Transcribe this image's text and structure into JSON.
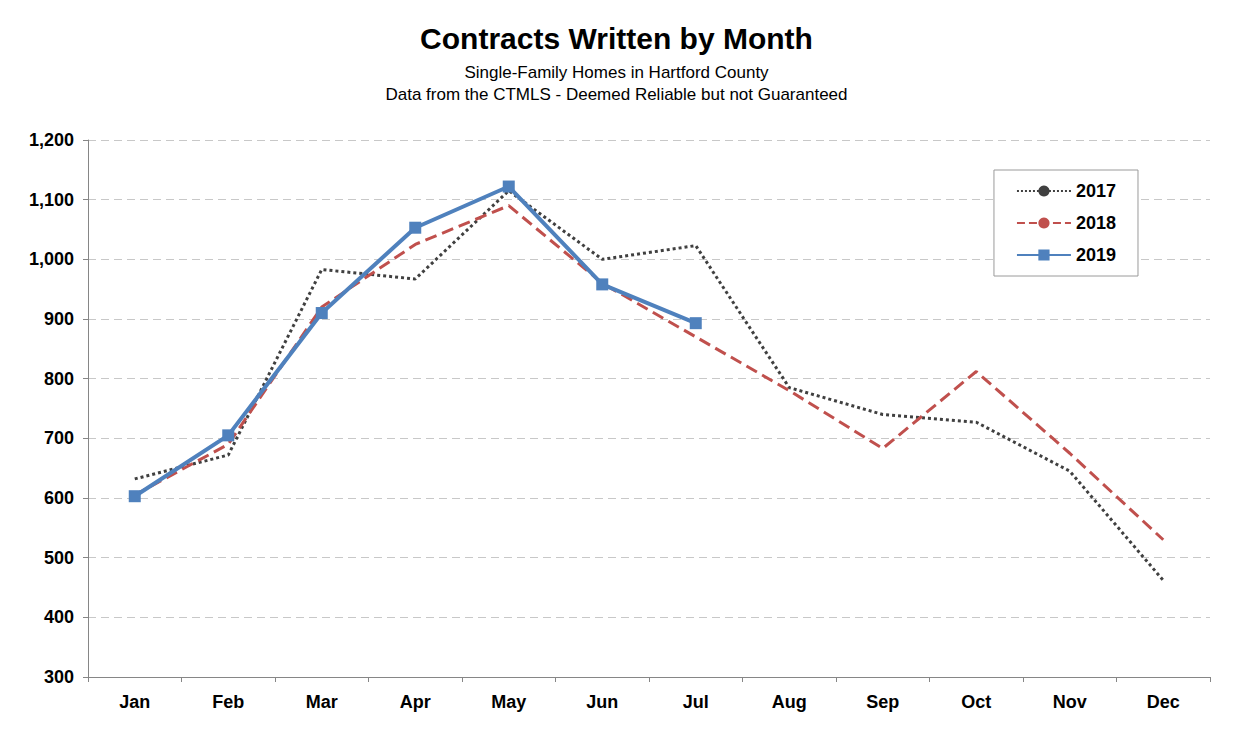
{
  "chart_data": {
    "type": "line",
    "title": "Contracts Written by Month",
    "subtitle": [
      "Single-Family Homes in Hartford County",
      "Data from the CTMLS - Deemed Reliable but not Guaranteed"
    ],
    "categories": [
      "Jan",
      "Feb",
      "Mar",
      "Apr",
      "May",
      "Jun",
      "Jul",
      "Aug",
      "Sep",
      "Oct",
      "Nov",
      "Dec"
    ],
    "series": [
      {
        "name": "2017",
        "color": "#404040",
        "line_style": "dotted",
        "marker": "none",
        "values": [
          632,
          672,
          983,
          967,
          1115,
          1000,
          1023,
          785,
          740,
          727,
          645,
          462
        ]
      },
      {
        "name": "2018",
        "color": "#c0504d",
        "line_style": "dashed",
        "marker": "none",
        "values": [
          605,
          690,
          920,
          1025,
          1090,
          960,
          870,
          780,
          683,
          812,
          675,
          530
        ]
      },
      {
        "name": "2019",
        "color": "#4f81bd",
        "line_style": "solid",
        "marker": "square",
        "values": [
          603,
          705,
          910,
          1053,
          1122,
          958,
          893,
          null,
          null,
          null,
          null,
          null
        ]
      }
    ],
    "ylim": [
      300,
      1200
    ],
    "yticks": [
      300,
      400,
      500,
      600,
      700,
      800,
      900,
      {
        "value": 1000,
        "label": "1,000"
      },
      {
        "value": 1100,
        "label": "1,100"
      },
      {
        "value": 1200,
        "label": "1,200"
      }
    ],
    "grid": true,
    "legend": "upper right"
  }
}
